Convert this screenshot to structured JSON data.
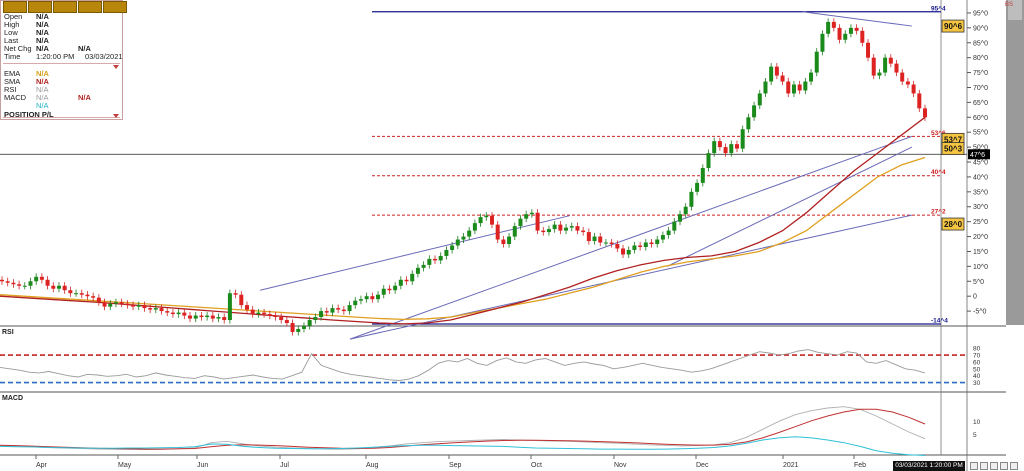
{
  "info": {
    "fields": [
      {
        "label": "Open",
        "value": "N/A"
      },
      {
        "label": "High",
        "value": "N/A"
      },
      {
        "label": "Low",
        "value": "N/A"
      },
      {
        "label": "Last",
        "value": "N/A"
      },
      {
        "label": "Net Chg",
        "value": "N/A",
        "extra": "N/A"
      },
      {
        "label": "Time",
        "value": "1:20:00 PM",
        "extra": "03/03/2021"
      }
    ],
    "studies": [
      {
        "label": "EMA",
        "value": "N/A",
        "color": "#d4a017"
      },
      {
        "label": "SMA",
        "value": "N/A",
        "color": "#b22222"
      },
      {
        "label": "RSI",
        "value": "N/A",
        "color": "#999999"
      },
      {
        "label": "MACD",
        "value": "N/A",
        "extra": "N/A",
        "color": "#999999",
        "extra_color": "#b22222"
      },
      {
        "label": "",
        "value": "N/A",
        "color": "#20b2c8"
      }
    ],
    "position_label": "POSITION P/L"
  },
  "panels": {
    "rsi": "RSI",
    "macd": "MACD"
  },
  "footer": {
    "timestamp": "03/03/2021 1:20:00 PM",
    "top_right": "BS"
  },
  "chart_data": {
    "type": "candlestick",
    "x_months": [
      "Apr",
      "May",
      "Jun",
      "Jul",
      "Aug",
      "Sep",
      "Oct",
      "Nov",
      "Dec",
      "2021",
      "Feb"
    ],
    "price_axis": {
      "ticks": [
        "95^0",
        "90^0",
        "85^0",
        "80^0",
        "75^0",
        "70^0",
        "65^0",
        "60^0",
        "55^0",
        "50^0",
        "45^0",
        "40^0",
        "35^0",
        "30^0",
        "25^0",
        "20^0",
        "15^0",
        "10^0",
        "5^0",
        "0",
        "-5^0"
      ],
      "tick_values": [
        95,
        90,
        85,
        80,
        75,
        70,
        65,
        60,
        55,
        50,
        45,
        40,
        35,
        30,
        25,
        20,
        15,
        10,
        5,
        0,
        -5
      ],
      "ylim": [
        -10,
        98
      ]
    },
    "fib_levels": [
      {
        "label": "95^4",
        "value": 95.4,
        "color": "#1a1a8c",
        "style": "solid"
      },
      {
        "label": "53^6",
        "value": 53.6,
        "color": "#cc2222",
        "style": "dashed"
      },
      {
        "label": "40^4",
        "value": 40.4,
        "color": "#cc2222",
        "style": "dashed"
      },
      {
        "label": "27^2",
        "value": 27.2,
        "color": "#cc2222",
        "style": "dashed"
      },
      {
        "label": "-14^4",
        "value": -14.4,
        "color": "#1a1a8c",
        "style": "solid"
      }
    ],
    "price_boxes": [
      {
        "label": "90^6",
        "value": 90.6
      },
      {
        "label": "53^7",
        "value": 52.6
      },
      {
        "label": "50^3",
        "value": 49.5
      },
      {
        "label": "28^0",
        "value": 24.2
      }
    ],
    "last_price": {
      "label": "47^6",
      "value": 47.6
    },
    "candles_close": [
      5,
      4.5,
      4,
      3.5,
      3.5,
      5,
      6.5,
      5.5,
      3.5,
      2.5,
      3.5,
      2,
      1,
      1,
      0.5,
      0,
      -0.5,
      -2,
      -3.5,
      -2.5,
      -2,
      -2.5,
      -3,
      -3.5,
      -3,
      -4,
      -4.5,
      -4,
      -5,
      -5.5,
      -6,
      -5.5,
      -6.5,
      -7.5,
      -6.5,
      -7,
      -6.5,
      -7.5,
      -7,
      -8,
      1,
      0.5,
      -3,
      -4.5,
      -6,
      -5.5,
      -6,
      -6.5,
      -7,
      -8,
      -9,
      -12,
      -11,
      -10,
      -8,
      -7,
      -5,
      -5.5,
      -4,
      -4.5,
      -5,
      -3,
      -1.5,
      -1,
      0,
      -1,
      0.5,
      2.5,
      2,
      3.5,
      5.5,
      5,
      7.5,
      9.5,
      10.5,
      12.5,
      12,
      13.5,
      15.5,
      17,
      19,
      20,
      22,
      24.5,
      26.5,
      27,
      24,
      19,
      17.5,
      20,
      23.5,
      26,
      27.5,
      28,
      22,
      21.5,
      22.5,
      24,
      22,
      23,
      23.5,
      22,
      21.5,
      18.5,
      20,
      18,
      18,
      17.5,
      16,
      14,
      15.5,
      17,
      16.5,
      18,
      17.5,
      19,
      20.5,
      22,
      25,
      27.5,
      30,
      35,
      38,
      43,
      48,
      52,
      50,
      48,
      51,
      49.5,
      56,
      60,
      64,
      68,
      72,
      77,
      74,
      72,
      68,
      71,
      69,
      72,
      75,
      82,
      88,
      92,
      90,
      86,
      88,
      90,
      89,
      85,
      80,
      74,
      75,
      80,
      78,
      75,
      72,
      71,
      68,
      63,
      60
    ],
    "ema": [
      0.5,
      0.0,
      -0.5,
      -1.0,
      -1.5,
      -2.0,
      -2.5,
      -3.0,
      -3.5,
      -4.0,
      -4.5,
      -5.0,
      -5.5,
      -6.0,
      -6.5,
      -7.0,
      -7.5,
      -7.8,
      -7.6,
      -7.0,
      -5.5,
      -4.0,
      -2.5,
      -1.0,
      1.0,
      3.0,
      5.5,
      8.0,
      10.0,
      11.5,
      12.5,
      13.5,
      15.0,
      18.0,
      22.0,
      28.0,
      34.0,
      40.0,
      44.0,
      46.5
    ],
    "sma": [
      0.0,
      -0.5,
      -1.0,
      -1.5,
      -2.0,
      -2.6,
      -3.2,
      -3.8,
      -4.4,
      -5.0,
      -5.6,
      -6.2,
      -6.8,
      -7.4,
      -8.0,
      -8.5,
      -9.0,
      -9.3,
      -9.0,
      -8.0,
      -6.0,
      -4.0,
      -2.0,
      0.5,
      3.0,
      6.0,
      8.5,
      10.5,
      12.0,
      13.0,
      13.5,
      15.0,
      18.0,
      22.0,
      28.0,
      35.0,
      42.0,
      48.0,
      54.0,
      60.0
    ],
    "trendlines": [
      {
        "from": [
          0.269,
          2
        ],
        "to": [
          0.589,
          27
        ]
      },
      {
        "from": [
          0.362,
          -14.4
        ],
        "to": [
          0.943,
          53.6
        ]
      },
      {
        "from": [
          0.362,
          -14.4
        ],
        "to": [
          0.943,
          27.2
        ]
      },
      {
        "from": [
          0.69,
          10
        ],
        "to": [
          0.943,
          50
        ]
      },
      {
        "from": [
          0.83,
          95.4
        ],
        "to": [
          0.943,
          90.6
        ]
      }
    ],
    "rsi": {
      "ticks": [
        "80",
        "70",
        "60",
        "50",
        "40",
        "30"
      ],
      "tick_values": [
        80,
        70,
        60,
        50,
        40,
        30
      ],
      "ylim": [
        22,
        92
      ],
      "overbought": 70,
      "oversold": 30,
      "values": [
        52,
        50,
        48,
        45,
        44,
        46,
        43,
        40,
        38,
        42,
        41,
        39,
        40,
        42,
        38,
        40,
        44,
        41,
        39,
        37,
        36,
        40,
        38,
        35,
        37,
        39,
        41,
        38,
        36,
        35,
        40,
        45,
        72,
        55,
        50,
        45,
        42,
        40,
        38,
        36,
        34,
        33,
        35,
        40,
        48,
        58,
        62,
        60,
        65,
        58,
        55,
        62,
        66,
        60,
        58,
        63,
        65,
        60,
        55,
        58,
        60,
        57,
        55,
        50,
        52,
        55,
        58,
        55,
        52,
        50,
        48,
        45,
        47,
        50,
        55,
        60,
        65,
        70,
        75,
        73,
        70,
        72,
        76,
        78,
        74,
        72,
        70,
        75,
        73,
        60,
        58,
        62,
        56,
        50,
        48,
        44
      ]
    },
    "macd": {
      "ticks": [
        "10",
        "5"
      ],
      "tick_values": [
        10,
        5
      ],
      "ylim": [
        -1.5,
        18
      ],
      "macd_line": [
        0.8,
        0.6,
        0.4,
        0.2,
        0.0,
        -0.2,
        -0.4,
        -0.5,
        -0.6,
        -0.6,
        -0.5,
        -0.3,
        0.0,
        2.0,
        2.5,
        1.5,
        0.8,
        0.3,
        0.0,
        -0.2,
        -0.4,
        -0.5,
        -0.3,
        0.2,
        0.8,
        1.5,
        2.0,
        2.4,
        2.6,
        2.8,
        3.0,
        3.2,
        3.0,
        2.8,
        2.6,
        2.5,
        2.3,
        2.0,
        1.8,
        1.5,
        1.2,
        1.0,
        0.8,
        0.9,
        1.2,
        2.0,
        4.0,
        7.0,
        10.0,
        12.5,
        14.0,
        15.0,
        15.5,
        14.5,
        12.0,
        9.0,
        6.0,
        3.5
      ],
      "signal_line": [
        1.0,
        0.9,
        0.7,
        0.5,
        0.3,
        0.1,
        -0.1,
        -0.2,
        -0.3,
        -0.4,
        -0.4,
        -0.3,
        -0.2,
        0.5,
        1.0,
        1.2,
        1.1,
        0.9,
        0.6,
        0.3,
        0.1,
        -0.1,
        -0.2,
        -0.1,
        0.2,
        0.7,
        1.2,
        1.6,
        2.0,
        2.3,
        2.6,
        2.8,
        2.9,
        2.9,
        2.8,
        2.7,
        2.6,
        2.4,
        2.2,
        2.0,
        1.7,
        1.4,
        1.2,
        1.1,
        1.1,
        1.4,
        2.3,
        3.8,
        5.8,
        8.0,
        10.2,
        12.0,
        13.5,
        14.5,
        14.5,
        13.5,
        11.5,
        9.0
      ],
      "histogram": [
        0.6,
        0.5,
        0.4,
        0.2,
        0.1,
        0.0,
        -0.1,
        -0.1,
        0.0,
        0.0,
        0.1,
        0.2,
        0.5,
        1.5,
        1.4,
        0.6,
        0.2,
        -0.1,
        -0.2,
        -0.3,
        -0.3,
        -0.2,
        0.0,
        0.3,
        0.6,
        0.9,
        1.0,
        1.0,
        0.9,
        0.8,
        0.7,
        0.6,
        0.3,
        0.0,
        -0.1,
        -0.2,
        -0.3,
        -0.4,
        -0.4,
        -0.5,
        -0.5,
        -0.4,
        -0.3,
        -0.1,
        0.2,
        0.8,
        1.8,
        3.0,
        3.8,
        4.2,
        3.8,
        3.0,
        2.0,
        0.6,
        -1.0,
        -2.0,
        -2.5,
        -2.8
      ]
    }
  }
}
